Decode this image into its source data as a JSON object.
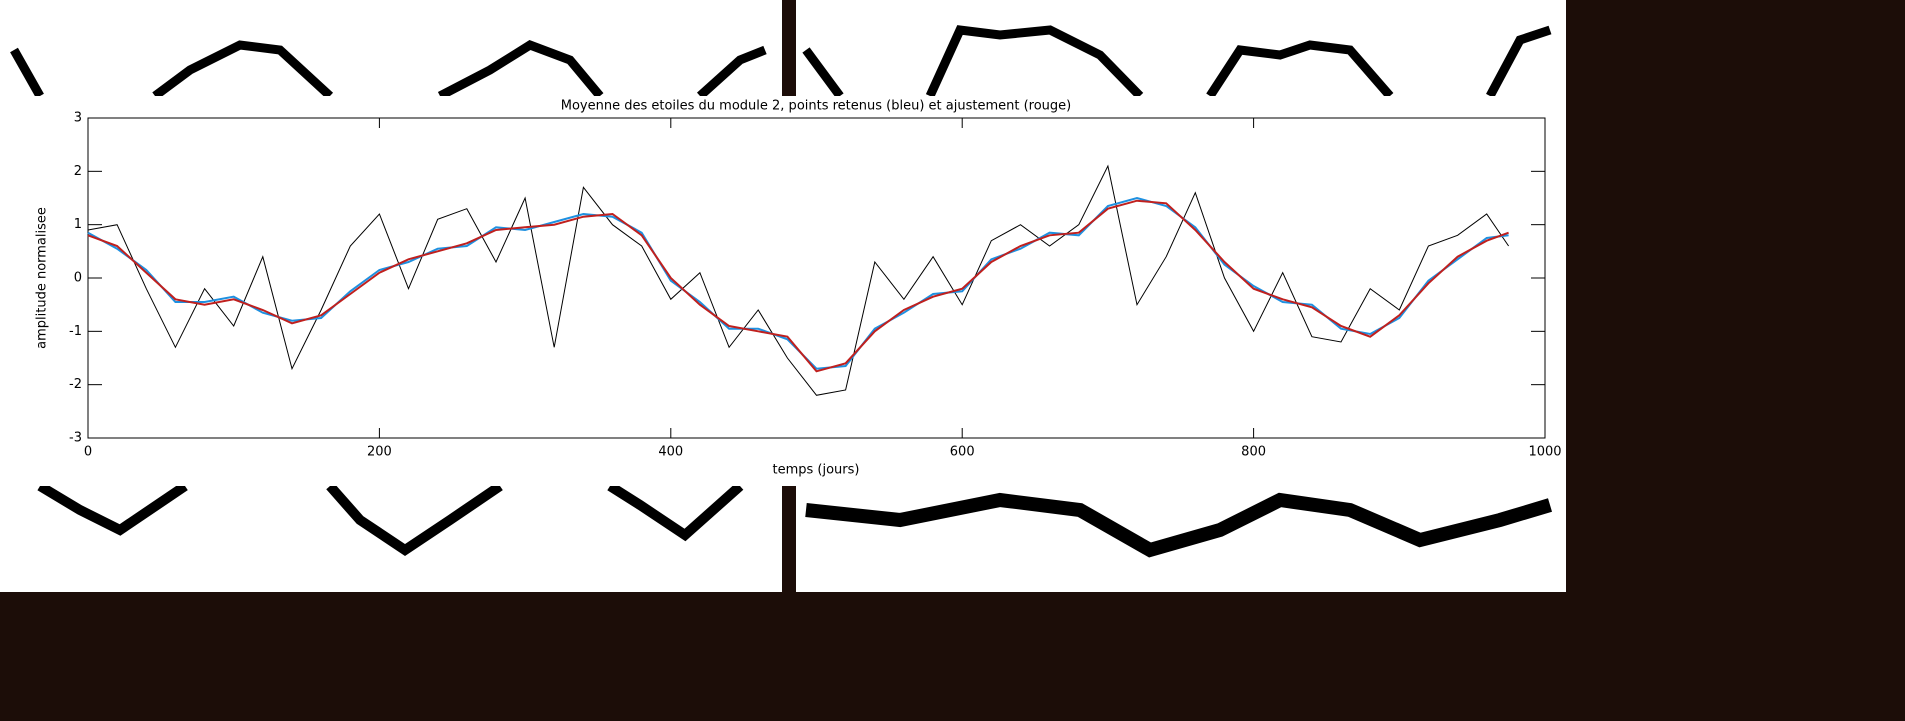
{
  "chart_data": {
    "type": "line",
    "title": "Moyenne des etoiles du module 2, points retenus (bleu) et ajustement (rouge)",
    "x_label": "temps (jours)",
    "y_label": "amplitude normalisee",
    "x": [
      0,
      20,
      40,
      60,
      80,
      100,
      120,
      140,
      160,
      180,
      200,
      220,
      240,
      260,
      280,
      300,
      320,
      340,
      360,
      380,
      400,
      420,
      440,
      460,
      480,
      500,
      520,
      540,
      560,
      580,
      600,
      620,
      640,
      660,
      680,
      700,
      720,
      740,
      760,
      780,
      800,
      820,
      840,
      860,
      880,
      900,
      920,
      940,
      960,
      975
    ],
    "series": [
      {
        "color": "#000000",
        "values": [
          0.9,
          1.0,
          -0.2,
          -1.3,
          -0.2,
          -0.9,
          0.4,
          -1.7,
          -0.6,
          0.6,
          1.2,
          -0.2,
          1.1,
          1.3,
          0.3,
          1.5,
          -1.3,
          1.7,
          1.0,
          0.6,
          -0.4,
          0.1,
          -1.3,
          -0.6,
          -1.5,
          -2.2,
          -2.1,
          0.3,
          -0.4,
          0.4,
          -0.5,
          0.7,
          1.0,
          0.6,
          1.0,
          2.1,
          -0.5,
          0.4,
          1.6,
          0.0,
          -1.0,
          0.1,
          -1.1,
          -1.2,
          -0.2,
          -0.6,
          0.6,
          0.8,
          1.2,
          0.6
        ]
      },
      {
        "color": "#1e90e0",
        "values": [
          0.85,
          0.55,
          0.15,
          -0.45,
          -0.45,
          -0.35,
          -0.65,
          -0.8,
          -0.75,
          -0.25,
          0.15,
          0.3,
          0.55,
          0.6,
          0.95,
          0.9,
          1.05,
          1.2,
          1.15,
          0.85,
          -0.05,
          -0.45,
          -0.95,
          -0.95,
          -1.15,
          -1.7,
          -1.65,
          -0.95,
          -0.65,
          -0.3,
          -0.25,
          0.35,
          0.55,
          0.85,
          0.8,
          1.35,
          1.5,
          1.35,
          0.95,
          0.25,
          -0.15,
          -0.45,
          -0.5,
          -0.95,
          -1.05,
          -0.75,
          -0.05,
          0.35,
          0.75,
          0.8
        ]
      },
      {
        "color": "#c0201e",
        "values": [
          0.8,
          0.6,
          0.1,
          -0.4,
          -0.5,
          -0.4,
          -0.6,
          -0.85,
          -0.7,
          -0.3,
          0.1,
          0.35,
          0.5,
          0.65,
          0.9,
          0.95,
          1.0,
          1.15,
          1.2,
          0.8,
          0.0,
          -0.5,
          -0.9,
          -1.0,
          -1.1,
          -1.75,
          -1.6,
          -1.0,
          -0.6,
          -0.35,
          -0.2,
          0.3,
          0.6,
          0.8,
          0.85,
          1.3,
          1.45,
          1.4,
          0.9,
          0.3,
          -0.2,
          -0.4,
          -0.55,
          -0.9,
          -1.1,
          -0.7,
          -0.1,
          0.4,
          0.7,
          0.85
        ]
      }
    ],
    "xlim": [
      0,
      1000
    ],
    "xticks": [
      0,
      200,
      400,
      600,
      800,
      1000
    ],
    "ylim": [
      -3,
      3
    ],
    "yticks": [
      -3,
      -2,
      -1,
      0,
      1,
      2,
      3
    ]
  }
}
